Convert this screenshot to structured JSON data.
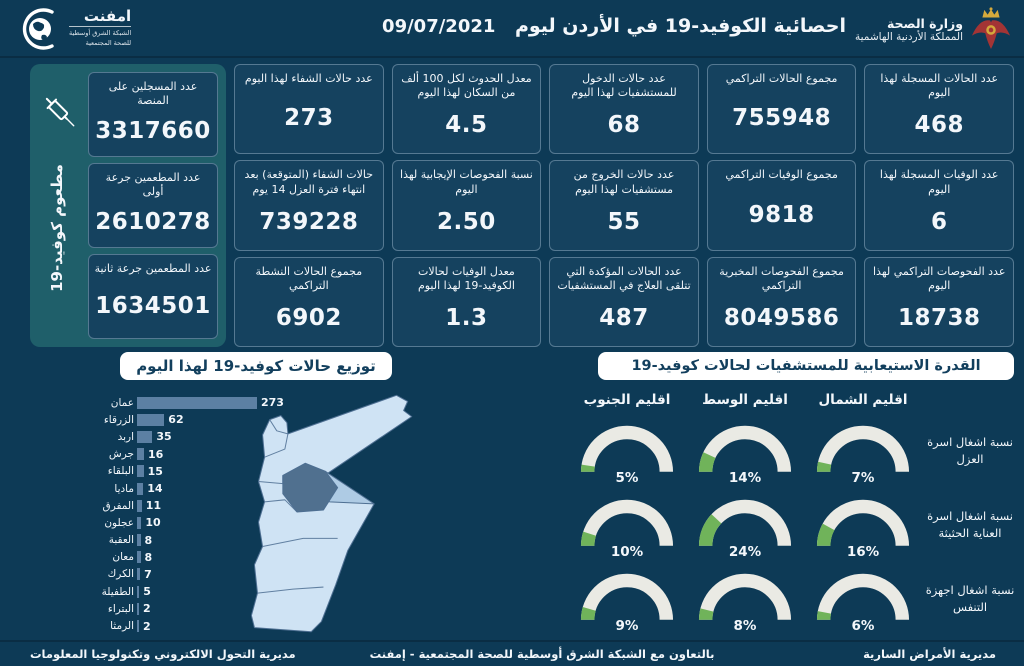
{
  "header": {
    "emphnet_logo": {
      "name": "امفنت",
      "line1": "الشبكة الشرق أوسطية",
      "line2": "للصحة المجتمعية"
    },
    "title": "احصائية الكوفيد-19 في الأردن ليوم",
    "date": "09/07/2021",
    "ministry": {
      "line1": "وزارة الصحة",
      "line2": "المملكة الأردنية الهاشمية"
    }
  },
  "stats": {
    "columns": [
      {
        "cards": [
          {
            "label": "عدد الحالات المسجلة لهذا اليوم",
            "value": "468"
          },
          {
            "label": "عدد الوفيات المسجلة لهذا اليوم",
            "value": "6"
          },
          {
            "label": "عدد الفحوصات التراكمي لهذا اليوم",
            "value": "18738"
          }
        ]
      },
      {
        "cards": [
          {
            "label": "مجموع الحالات التراكمي",
            "value": "755948"
          },
          {
            "label": "مجموع الوفيات التراكمي",
            "value": "9818"
          },
          {
            "label": "مجموع الفحوصات المخبرية التراكمي",
            "value": "8049586"
          }
        ]
      },
      {
        "cards": [
          {
            "label": "عدد حالات الدخول للمستشفيات لهذا اليوم",
            "value": "68"
          },
          {
            "label": "عدد حالات الخروج من مستشفيات لهذا اليوم",
            "value": "55"
          },
          {
            "label": "عدد الحالات المؤكدة التي تتلقى العلاج في المستشفيات",
            "value": "487"
          }
        ]
      },
      {
        "cards": [
          {
            "label": "معدل الحدوث لكل 100 ألف من السكان لهذا اليوم",
            "value": "4.5"
          },
          {
            "label": "نسبة الفحوصات الإيجابية لهذا اليوم",
            "value": "2.50"
          },
          {
            "label": "معدل الوفيات لحالات الكوفيد-19 لهذا اليوم",
            "value": "1.3"
          }
        ]
      },
      {
        "cards": [
          {
            "label": "عدد حالات الشفاء لهذا اليوم",
            "value": "273"
          },
          {
            "label": "حالات الشفاء (المتوقعة) بعد انتهاء فترة العزل 14 يوم",
            "value": "739228"
          },
          {
            "label": "مجموع الحالات النشطة التراكمي",
            "value": "6902"
          }
        ]
      }
    ],
    "vaccination": {
      "side_label": "مطعوم كوفيد-19",
      "cards": [
        {
          "label": "عدد المسجلين على المنصة",
          "value": "3317660"
        },
        {
          "label": "عدد المطعمين جرعة أولى",
          "value": "2610278"
        },
        {
          "label": "عدد المطعمين جرعة ثانية",
          "value": "1634501"
        }
      ]
    }
  },
  "chart_data": [
    {
      "type": "bar",
      "orientation": "horizontal",
      "title": "توزيع حالات كوفيد-19 لهذا اليوم",
      "categories": [
        "عمان",
        "الزرقاء",
        "اربد",
        "جرش",
        "البلقاء",
        "ماديا",
        "المفرق",
        "عجلون",
        "العقبة",
        "معان",
        "الكرك",
        "الطفيلة",
        "البتراء",
        "الرمثا"
      ],
      "values": [
        273,
        62,
        35,
        16,
        15,
        14,
        11,
        10,
        8,
        8,
        7,
        5,
        2,
        2
      ],
      "xlim": [
        0,
        273
      ],
      "bar_color": "#5c80a3"
    },
    {
      "type": "gauge-grid",
      "title": "القدرة الاستيعابية للمستشفيات لحالات كوفيد-19",
      "unit": "%",
      "columns": [
        "اقليم الشمال",
        "اقليم الوسط",
        "اقليم الجنوب"
      ],
      "rows": [
        {
          "label": "نسبة اشغال اسرة العزل",
          "values": [
            7,
            14,
            5
          ]
        },
        {
          "label": "نسبة اشغال اسرة العناية الحثيثة",
          "values": [
            16,
            24,
            10
          ]
        },
        {
          "label": "نسبة اشغال اجهزة التنفس",
          "values": [
            6,
            8,
            9
          ]
        }
      ],
      "range": [
        0,
        100
      ]
    }
  ],
  "map": {
    "country": "الأردن",
    "highlight_region": "عمان"
  },
  "footer": {
    "right": "مديرية الأمراض السارية",
    "center": "بالتعاون مع الشبكة الشرق أوسطية للصحة المجتمعية - إمفنت",
    "left": "مديرية التحول الالكتروني وتكنولوجيا المعلومات"
  },
  "colors": {
    "background": "#0d3a56",
    "card": "#15425f",
    "teal_panel": "#1f5f6a",
    "bar": "#5c80a3",
    "gauge_track": "#eaeae4",
    "gauge_fill": "#70b35a",
    "map_base": "#cfe3f4",
    "map_stroke": "#4e6f92",
    "map_dark": "#50708f",
    "map_mid": "#aecbe4",
    "pill_text": "#123f5d"
  }
}
